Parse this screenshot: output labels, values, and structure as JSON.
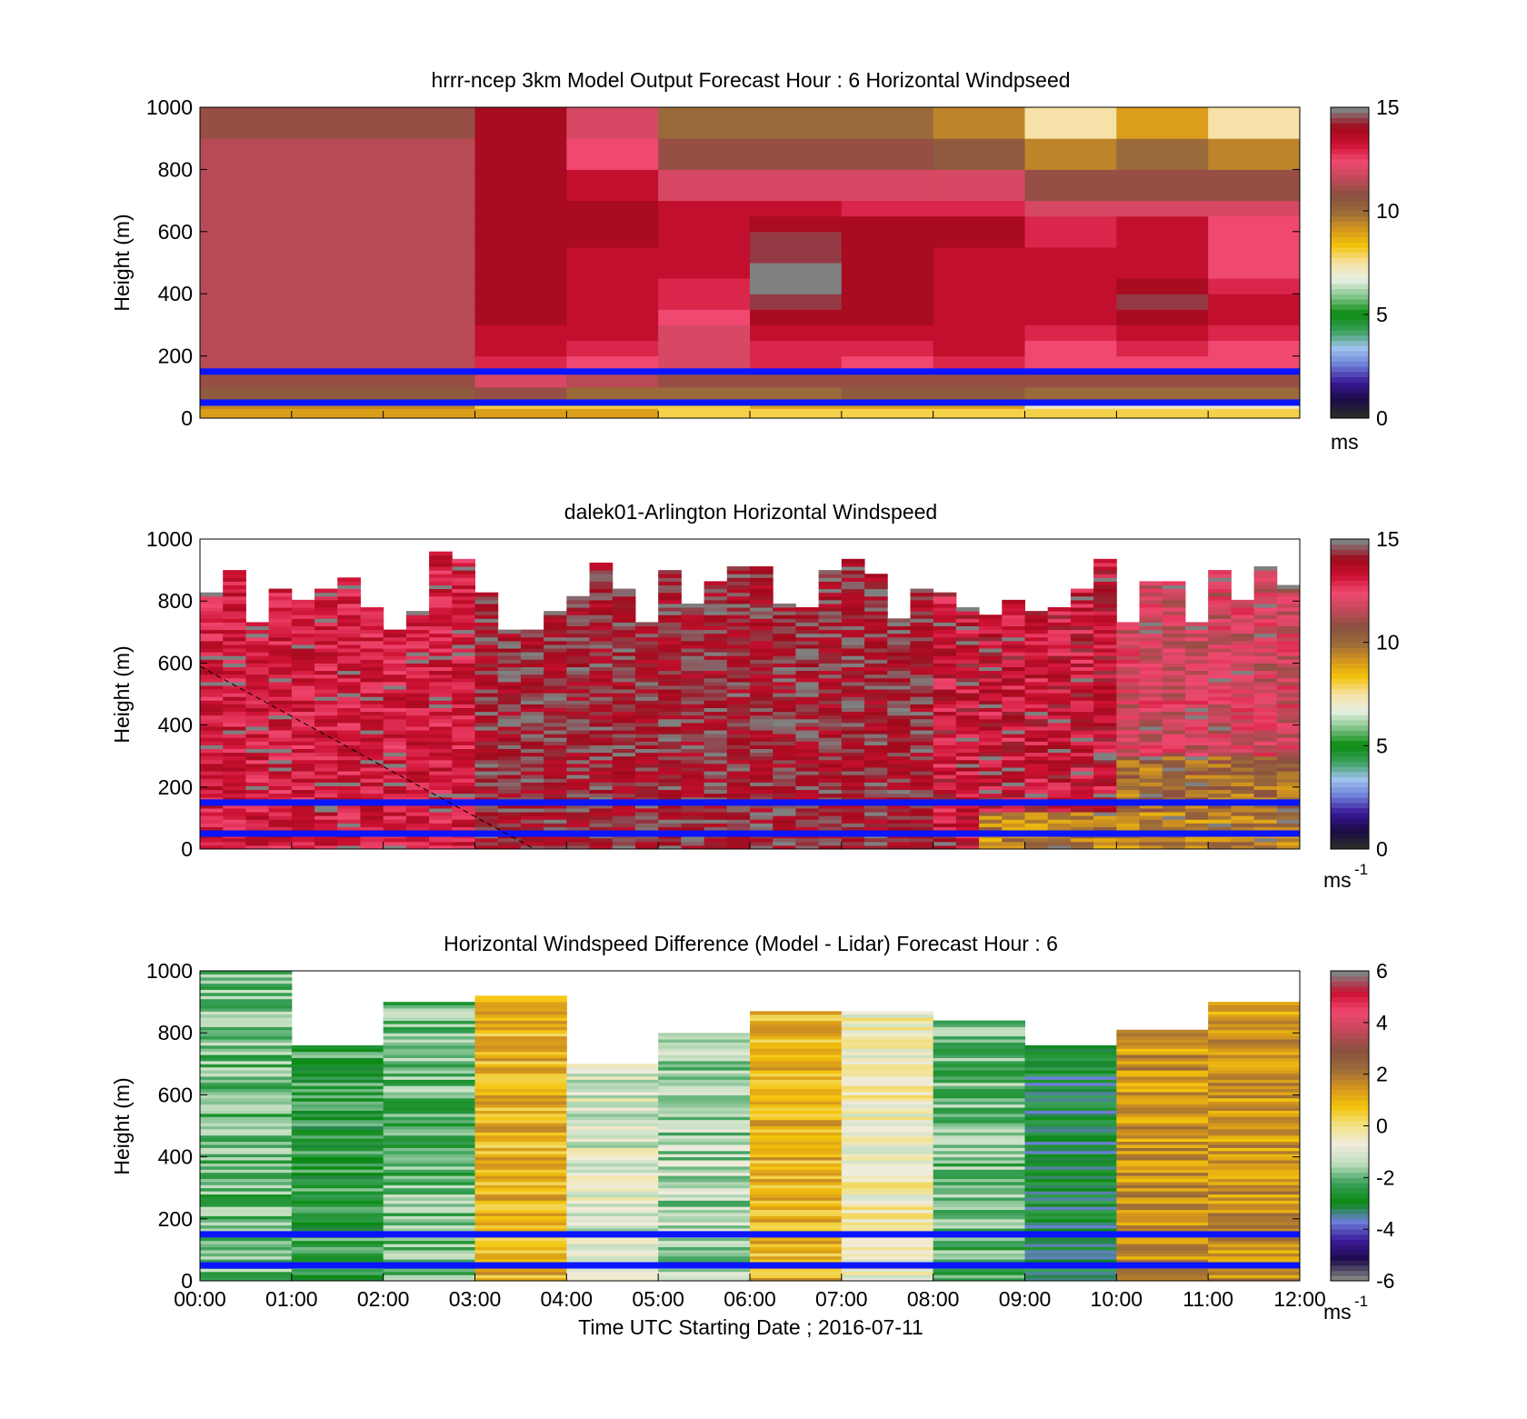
{
  "colors": {
    "wind_colormap": [
      "#2a2a2a",
      "#1c0a4a",
      "#3a1a9a",
      "#6e7fd8",
      "#9fc4ee",
      "#3aa05a",
      "#0a8a10",
      "#7fc487",
      "#e6f0e4",
      "#f6e2a8",
      "#f4c40a",
      "#d4951e",
      "#9a6a3a",
      "#8a5040",
      "#c4485a",
      "#f04870",
      "#cc1032",
      "#a00a1c",
      "#808080"
    ],
    "diff_colormap": [
      "#808080",
      "#1c0a4a",
      "#3a1a9a",
      "#6e7fd8",
      "#0a8a10",
      "#3aa05a",
      "#bcdcbc",
      "#f0ecde",
      "#f2e28a",
      "#f4c40a",
      "#d4951e",
      "#9a6a3a",
      "#8a5040",
      "#c4485a",
      "#f04870",
      "#cc1032",
      "#808080"
    ],
    "rangeGate": "#0a14ff"
  },
  "chart_data": [
    {
      "type": "heatmap",
      "title": "hrrr-ncep 3km Model Output   Forecast Hour : 6 Horizontal Windpseed",
      "xlabel": "",
      "ylabel": "Height (m)",
      "xlim": [
        0,
        12
      ],
      "ylim": [
        0,
        1000
      ],
      "yticks": [
        "0",
        "200",
        "400",
        "600",
        "800",
        "1000"
      ],
      "x_hours": [
        "00:00",
        "01:00",
        "02:00",
        "03:00",
        "04:00",
        "05:00",
        "06:00",
        "07:00",
        "08:00",
        "09:00",
        "10:00",
        "11:00"
      ],
      "heights": [
        30,
        60,
        100,
        150,
        200,
        250,
        300,
        350,
        400,
        450,
        500,
        550,
        600,
        650,
        700,
        800,
        900,
        1000
      ],
      "values": [
        [
          9.5,
          9.5,
          9.5,
          8,
          8,
          8,
          9,
          9,
          9,
          7,
          7,
          7
        ],
        [
          10.5,
          10.5,
          10.5,
          11,
          10,
          10,
          10,
          10.5,
          10.5,
          10,
          10,
          10
        ],
        [
          11,
          11,
          11,
          12,
          11.5,
          11,
          11,
          11,
          11,
          11,
          11,
          11
        ],
        [
          11.5,
          11.5,
          11.5,
          13,
          12.5,
          12,
          13,
          12.5,
          13,
          12.5,
          12.5,
          12.5
        ],
        [
          11.5,
          11.5,
          11.5,
          13.5,
          13,
          12,
          13,
          13,
          13.5,
          12.5,
          13,
          12.5
        ],
        [
          11.5,
          11.5,
          11.5,
          13.5,
          13.5,
          12,
          13.5,
          13.5,
          13.5,
          13,
          13.5,
          13
        ],
        [
          11.5,
          11.5,
          11.5,
          14,
          13.5,
          12.5,
          14,
          14,
          13.5,
          13.5,
          14,
          13.5
        ],
        [
          11.5,
          11.5,
          11.5,
          14,
          13.5,
          13,
          14.5,
          14,
          13.5,
          13.5,
          14.5,
          13.5
        ],
        [
          11.5,
          11.5,
          11.5,
          14,
          13.5,
          13,
          15,
          14,
          13.5,
          13.5,
          14,
          13
        ],
        [
          11.5,
          11.5,
          11.5,
          14,
          13.5,
          13.5,
          15,
          14,
          13.5,
          13.5,
          13.5,
          12.5
        ],
        [
          11.5,
          11.5,
          11.5,
          14,
          13.5,
          13.5,
          14.5,
          14,
          13.5,
          13.5,
          13.5,
          12.5
        ],
        [
          11.5,
          11.5,
          11.5,
          14,
          14,
          13.5,
          14.5,
          14,
          14,
          13,
          13.5,
          12.5
        ],
        [
          11.5,
          11.5,
          11.5,
          14,
          14,
          13.5,
          14,
          14,
          14,
          13,
          13.5,
          12.5
        ],
        [
          11.5,
          11.5,
          11.5,
          14,
          14,
          13.5,
          13.5,
          13,
          13,
          12,
          12,
          12
        ],
        [
          11.5,
          11.5,
          11.5,
          14,
          13.5,
          12,
          12,
          12,
          12,
          11,
          11,
          11
        ],
        [
          11.5,
          11.5,
          11.5,
          14,
          12.5,
          11,
          11,
          11,
          10.5,
          9.5,
          10,
          9.5
        ],
        [
          11,
          11,
          11,
          14,
          12,
          10,
          10,
          10,
          9.5,
          7.5,
          9,
          7.5
        ]
      ],
      "colorbar": {
        "min": 0,
        "max": 15,
        "ticks": [
          "0",
          "5",
          "10",
          "15"
        ],
        "label": "ms"
      }
    },
    {
      "type": "heatmap",
      "title": "dalek01-Arlington  Horizontal Windspeed",
      "xlabel": "",
      "ylabel": "Height (m)",
      "xlim": [
        0,
        12
      ],
      "ylim": [
        0,
        1000
      ],
      "yticks": [
        "0",
        "200",
        "400",
        "600",
        "800",
        "1000"
      ],
      "x_res_minutes": 15,
      "typical_profile_note": "",
      "colorbar": {
        "min": 0,
        "max": 15,
        "ticks": [
          "0",
          "5",
          "10",
          "15"
        ],
        "label": "ms",
        "label_sup": "-1"
      }
    },
    {
      "type": "heatmap",
      "title": "Horizontal Windspeed Difference (Model - Lidar) Forecast Hour : 6",
      "xlabel": "Time UTC  Starting Date ; 2016-07-11",
      "ylabel": "Height (m)",
      "xlim": [
        0,
        12
      ],
      "ylim": [
        0,
        1000
      ],
      "yticks": [
        "0",
        "200",
        "400",
        "600",
        "800",
        "1000"
      ],
      "xticks": [
        "00:00",
        "01:00",
        "02:00",
        "03:00",
        "04:00",
        "05:00",
        "06:00",
        "07:00",
        "08:00",
        "09:00",
        "10:00",
        "11:00",
        "12:00"
      ],
      "column_tops_m": [
        1000,
        760,
        900,
        920,
        700,
        800,
        870,
        870,
        840,
        760,
        810,
        900
      ],
      "column_mean_difference": [
        -2,
        -2.5,
        -2,
        1,
        -1,
        -1.5,
        1,
        -0.5,
        -2,
        -3,
        1.5,
        1.5
      ],
      "colorbar": {
        "min": -6,
        "max": 6,
        "ticks": [
          "-6",
          "-4",
          "-2",
          "0",
          "2",
          "4",
          "6"
        ],
        "label": "ms",
        "label_sup": "-1"
      }
    }
  ],
  "range_gate_lines_m": [
    50,
    150
  ]
}
